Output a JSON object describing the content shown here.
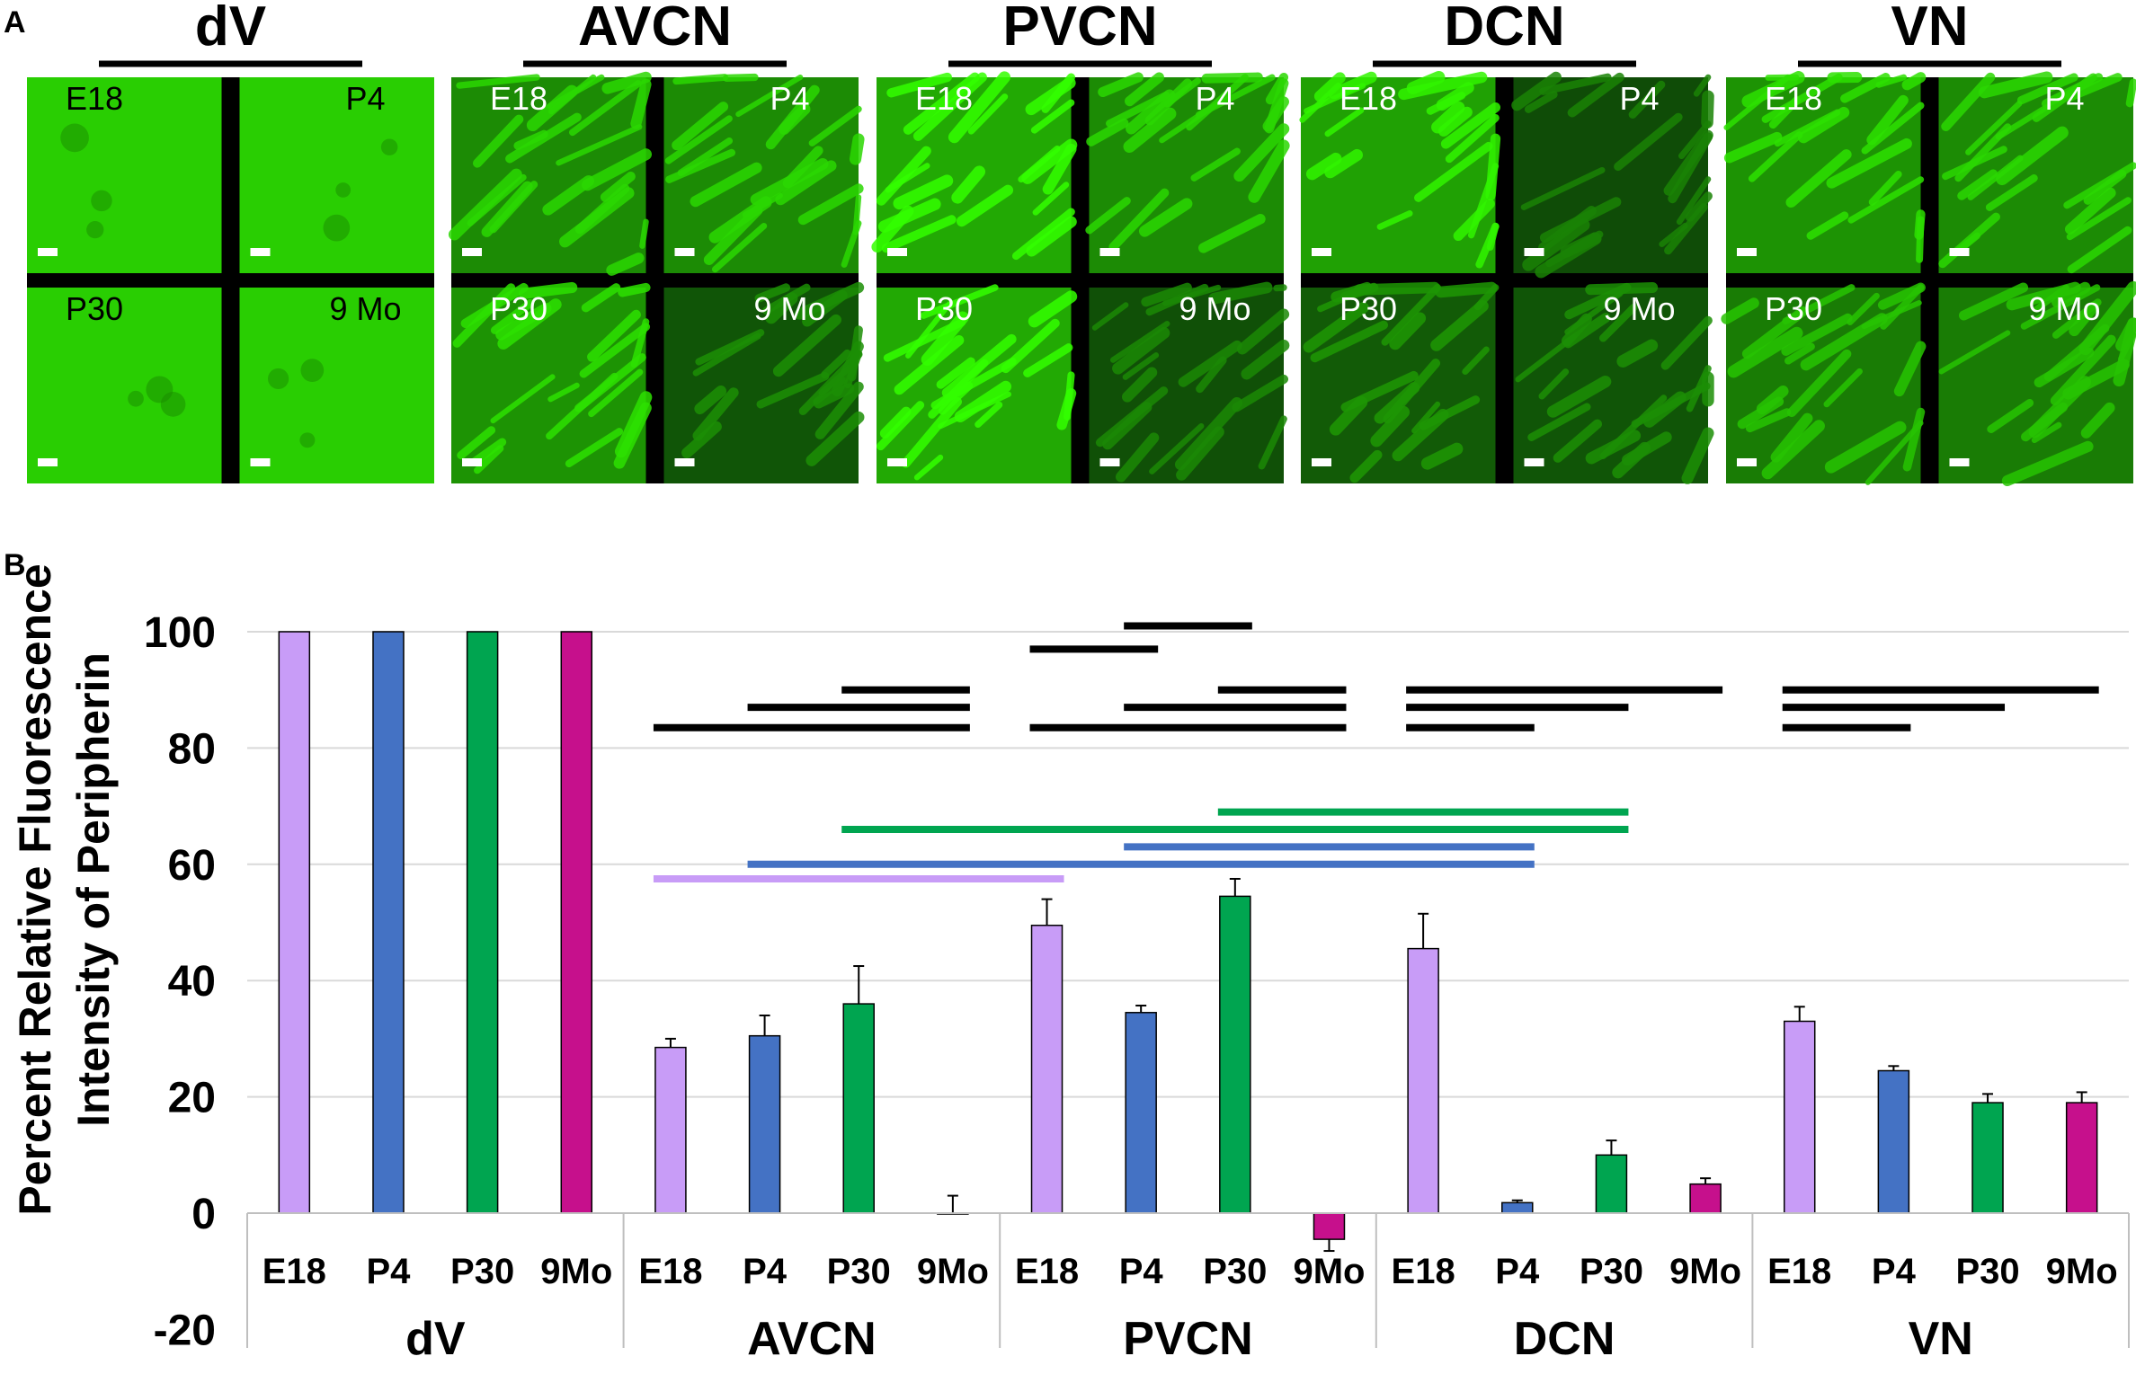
{
  "panel_labels": {
    "a": "A",
    "b": "B"
  },
  "colors": {
    "E18": "#c89cf7",
    "P4": "#4472c4",
    "P30": "#00a550",
    "9Mo": "#c6108c",
    "micrograph_bright": "#33ff00",
    "micrograph_dim": "#0b3a08",
    "separator": "#000000"
  },
  "panel_a": {
    "regions": [
      {
        "title": "dV",
        "tiles": [
          {
            "label": "E18",
            "level": 1.0
          },
          {
            "label": "P4",
            "level": 1.0
          },
          {
            "label": "P30",
            "level": 1.0
          },
          {
            "label": "9 Mo",
            "level": 1.0
          }
        ]
      },
      {
        "title": "AVCN",
        "tiles": [
          {
            "label": "E18",
            "level": 0.55
          },
          {
            "label": "P4",
            "level": 0.55
          },
          {
            "label": "P30",
            "level": 0.6
          },
          {
            "label": "9 Mo",
            "level": 0.18
          }
        ]
      },
      {
        "title": "PVCN",
        "tiles": [
          {
            "label": "E18",
            "level": 0.75
          },
          {
            "label": "P4",
            "level": 0.55
          },
          {
            "label": "P30",
            "level": 0.75
          },
          {
            "label": "9 Mo",
            "level": 0.15
          }
        ]
      },
      {
        "title": "DCN",
        "tiles": [
          {
            "label": "E18",
            "level": 0.7
          },
          {
            "label": "P4",
            "level": 0.12
          },
          {
            "label": "P30",
            "level": 0.22
          },
          {
            "label": "9 Mo",
            "level": 0.18
          }
        ]
      },
      {
        "title": "VN",
        "tiles": [
          {
            "label": "E18",
            "level": 0.6
          },
          {
            "label": "P4",
            "level": 0.55
          },
          {
            "label": "P30",
            "level": 0.45
          },
          {
            "label": "9 Mo",
            "level": 0.45
          }
        ]
      }
    ]
  },
  "chart_data": {
    "type": "bar",
    "ylabel_line1": "Percent Relative Fluorescence",
    "ylabel_line2": "Intensity of Peripherin",
    "ylim": [
      -20,
      100
    ],
    "yticks": [
      "100",
      "80",
      "60",
      "40",
      "20",
      "0",
      "-20"
    ],
    "ytick_values": [
      100,
      80,
      60,
      40,
      20,
      0,
      -20
    ],
    "grid": true,
    "groups": [
      "dV",
      "AVCN",
      "PVCN",
      "DCN",
      "VN"
    ],
    "categories": [
      "E18",
      "P4",
      "P30",
      "9Mo"
    ],
    "series": [
      {
        "group": "dV",
        "values": [
          100,
          100,
          100,
          100
        ],
        "errors": [
          0,
          0,
          0,
          0
        ]
      },
      {
        "group": "AVCN",
        "values": [
          28.5,
          30.5,
          36,
          0
        ],
        "errors": [
          1.5,
          3.5,
          6.5,
          3
        ]
      },
      {
        "group": "PVCN",
        "values": [
          49.5,
          34.5,
          54.5,
          -4.5
        ],
        "errors": [
          4.5,
          1.2,
          3,
          2
        ]
      },
      {
        "group": "DCN",
        "values": [
          45.5,
          1.8,
          10,
          5
        ],
        "errors": [
          6,
          0.4,
          2.5,
          1
        ]
      },
      {
        "group": "VN",
        "values": [
          33,
          24.5,
          19,
          19
        ],
        "errors": [
          2.5,
          0.8,
          1.5,
          1.8
        ]
      }
    ],
    "significance_bars": [
      {
        "group": "AVCN",
        "from": "E18",
        "to": "9Mo",
        "y": 83.5,
        "color": "#000000"
      },
      {
        "group": "AVCN",
        "from": "P4",
        "to": "9Mo",
        "y": 87,
        "color": "#000000"
      },
      {
        "group": "AVCN",
        "from": "P30",
        "to": "9Mo",
        "y": 90,
        "color": "#000000"
      },
      {
        "group": "PVCN",
        "from": "E18",
        "to": "9Mo",
        "y": 83.5,
        "color": "#000000"
      },
      {
        "group": "PVCN",
        "from": "P4",
        "to": "9Mo",
        "y": 87,
        "color": "#000000"
      },
      {
        "group": "PVCN",
        "from": "P30",
        "to": "9Mo",
        "y": 90,
        "color": "#000000"
      },
      {
        "group": "PVCN",
        "from": "E18",
        "to": "P4",
        "y": 97,
        "color": "#000000"
      },
      {
        "group": "PVCN",
        "from": "P4",
        "to": "P30",
        "y": 101,
        "color": "#000000"
      },
      {
        "group": "DCN",
        "from": "E18",
        "to": "P4",
        "y": 83.5,
        "color": "#000000"
      },
      {
        "group": "DCN",
        "from": "E18",
        "to": "P30",
        "y": 87,
        "color": "#000000"
      },
      {
        "group": "DCN",
        "from": "E18",
        "to": "9Mo",
        "y": 90,
        "color": "#000000"
      },
      {
        "group": "VN",
        "from": "E18",
        "to": "P4",
        "y": 83.5,
        "color": "#000000"
      },
      {
        "group": "VN",
        "from": "E18",
        "to": "P30",
        "y": 87,
        "color": "#000000"
      },
      {
        "group": "VN",
        "from": "E18",
        "to": "9Mo",
        "y": 90,
        "color": "#000000"
      },
      {
        "from_group": "AVCN",
        "from": "E18",
        "to_group": "PVCN",
        "to": "E18",
        "y": 57.5,
        "color": "#c89cf7"
      },
      {
        "from_group": "AVCN",
        "from": "P4",
        "to_group": "DCN",
        "to": "P4",
        "y": 60,
        "color": "#4472c4"
      },
      {
        "from_group": "PVCN",
        "from": "P4",
        "to_group": "DCN",
        "to": "P4",
        "y": 63,
        "color": "#4472c4"
      },
      {
        "from_group": "AVCN",
        "from": "P30",
        "to_group": "DCN",
        "to": "P30",
        "y": 66,
        "color": "#00a550"
      },
      {
        "from_group": "PVCN",
        "from": "P30",
        "to_group": "DCN",
        "to": "P30",
        "y": 69,
        "color": "#00a550"
      }
    ]
  }
}
